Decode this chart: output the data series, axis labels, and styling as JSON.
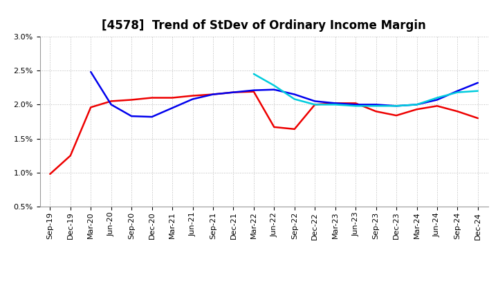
{
  "title": "[4578]  Trend of StDev of Ordinary Income Margin",
  "ylim": [
    0.005,
    0.03
  ],
  "yticks": [
    0.005,
    0.01,
    0.015,
    0.02,
    0.025,
    0.03
  ],
  "x_labels": [
    "Sep-19",
    "Dec-19",
    "Mar-20",
    "Jun-20",
    "Sep-20",
    "Dec-20",
    "Mar-21",
    "Jun-21",
    "Sep-21",
    "Dec-21",
    "Mar-22",
    "Jun-22",
    "Sep-22",
    "Dec-22",
    "Mar-23",
    "Jun-23",
    "Sep-23",
    "Dec-23",
    "Mar-24",
    "Jun-24",
    "Sep-24",
    "Dec-24"
  ],
  "series_3y": [
    0.0098,
    0.0125,
    0.0196,
    0.0205,
    0.0207,
    0.021,
    0.021,
    0.0213,
    0.0215,
    0.0218,
    0.0219,
    0.0167,
    0.0164,
    0.02,
    0.0202,
    0.0202,
    0.019,
    0.0184,
    0.0193,
    0.0198,
    0.019,
    0.018
  ],
  "series_5y": [
    null,
    null,
    0.0248,
    0.02,
    0.0183,
    0.0182,
    0.0195,
    0.0208,
    0.0215,
    0.0218,
    0.0221,
    0.0222,
    0.0215,
    0.0205,
    0.0202,
    0.02,
    0.02,
    0.0198,
    0.02,
    0.0207,
    0.022,
    0.0232
  ],
  "series_7y": [
    null,
    null,
    null,
    null,
    null,
    null,
    null,
    null,
    null,
    null,
    0.0245,
    0.0228,
    0.0208,
    0.02,
    0.02,
    0.0198,
    0.0198,
    0.0198,
    0.02,
    0.021,
    0.0218,
    0.022
  ],
  "series_10y": [
    null,
    null,
    null,
    null,
    null,
    null,
    null,
    null,
    null,
    null,
    null,
    null,
    null,
    null,
    null,
    null,
    null,
    null,
    null,
    null,
    null,
    null
  ],
  "color_3y": "#ee0000",
  "color_5y": "#0000ee",
  "color_7y": "#00ccdd",
  "color_10y": "#00aa00",
  "background_color": "#ffffff",
  "plot_bg_color": "#ffffff",
  "grid_color": "#b0b0b0",
  "title_fontsize": 12,
  "tick_fontsize": 8,
  "legend_fontsize": 9,
  "linewidth": 1.8
}
